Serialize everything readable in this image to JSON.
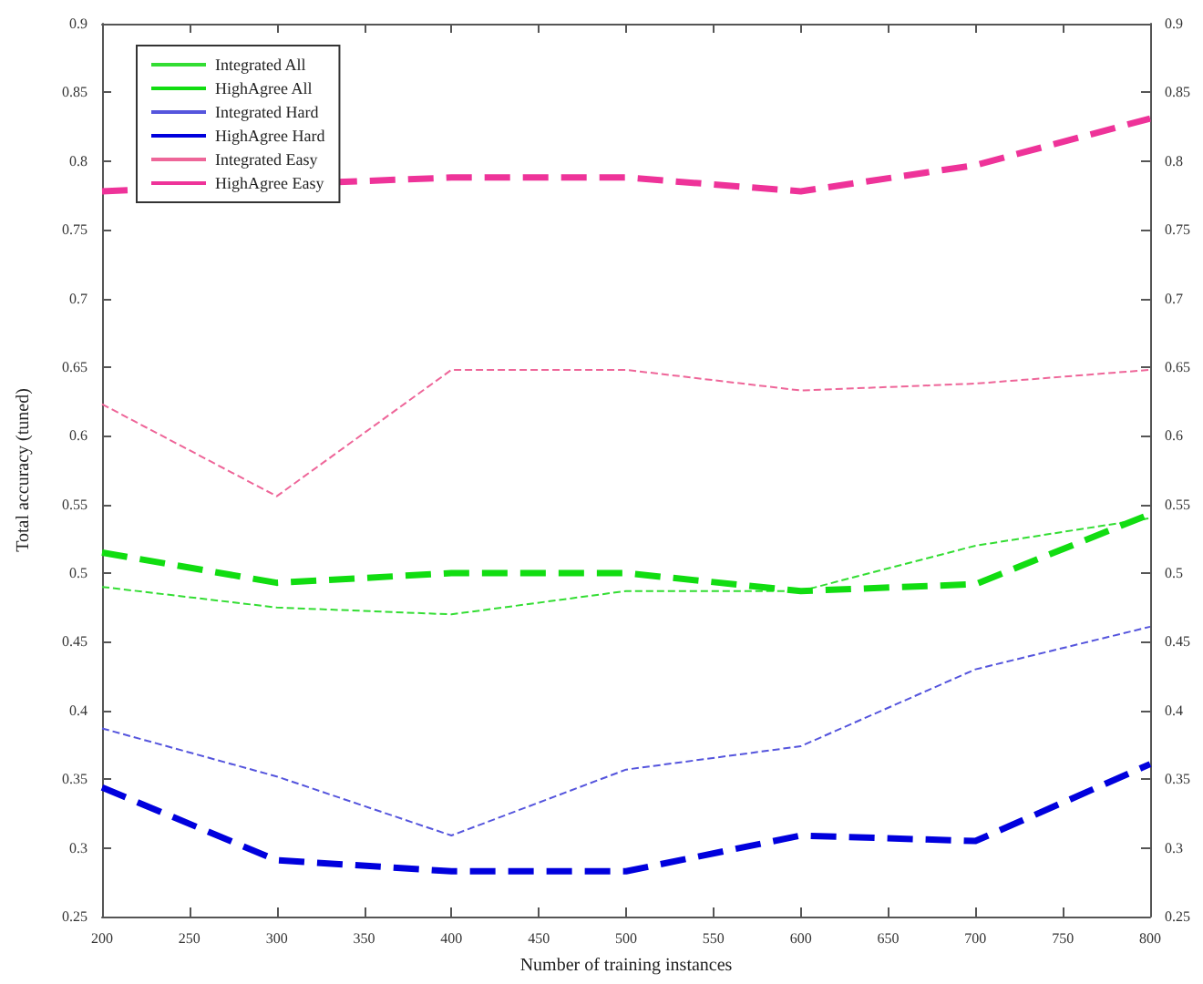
{
  "chart_data": {
    "type": "line",
    "xlabel": "Number of training instances",
    "ylabel": "Total accuracy (tuned)",
    "x": [
      200,
      300,
      400,
      500,
      600,
      700,
      800
    ],
    "xlim": [
      200,
      800
    ],
    "xticks": [
      200,
      250,
      300,
      350,
      400,
      450,
      500,
      550,
      600,
      650,
      700,
      750,
      800
    ],
    "ylim": [
      0.25,
      0.9
    ],
    "yticks": [
      0.25,
      0.3,
      0.35,
      0.4,
      0.45,
      0.5,
      0.55,
      0.6,
      0.65,
      0.7,
      0.75,
      0.8,
      0.85,
      0.9
    ],
    "y2lim": [
      0.25,
      0.9
    ],
    "y2ticks": [
      0.25,
      0.3,
      0.35,
      0.4,
      0.45,
      0.5,
      0.55,
      0.6,
      0.65,
      0.7,
      0.75,
      0.8,
      0.85,
      0.9
    ],
    "grid": false,
    "legend": "top left",
    "marker": "none",
    "series": [
      {
        "name": "Integrated All",
        "color": "#33dd33",
        "line_style": "dashed",
        "values": [
          0.49,
          0.475,
          0.47,
          0.487,
          0.487,
          0.52,
          0.54
        ]
      },
      {
        "name": "HighAgree All",
        "color": "#11dd11",
        "line_style": "dashed",
        "values": [
          0.515,
          0.493,
          0.5,
          0.5,
          0.487,
          0.492,
          0.543
        ]
      },
      {
        "name": "Integrated Hard",
        "color": "#5555dd",
        "line_style": "dashed",
        "values": [
          0.387,
          0.352,
          0.309,
          0.357,
          0.374,
          0.43,
          0.461
        ]
      },
      {
        "name": "HighAgree Hard",
        "color": "#0000dd",
        "line_style": "dashed",
        "values": [
          0.344,
          0.291,
          0.283,
          0.283,
          0.309,
          0.305,
          0.361
        ]
      },
      {
        "name": "Integrated Easy",
        "color": "#ee6699",
        "line_style": "dashed",
        "values": [
          0.623,
          0.556,
          0.648,
          0.648,
          0.633,
          0.638,
          0.648
        ]
      },
      {
        "name": "HighAgree Easy",
        "color": "#ee3399",
        "line_style": "dashed",
        "values": [
          0.778,
          null,
          0.788,
          0.788,
          0.778,
          0.797,
          0.831
        ]
      }
    ]
  }
}
